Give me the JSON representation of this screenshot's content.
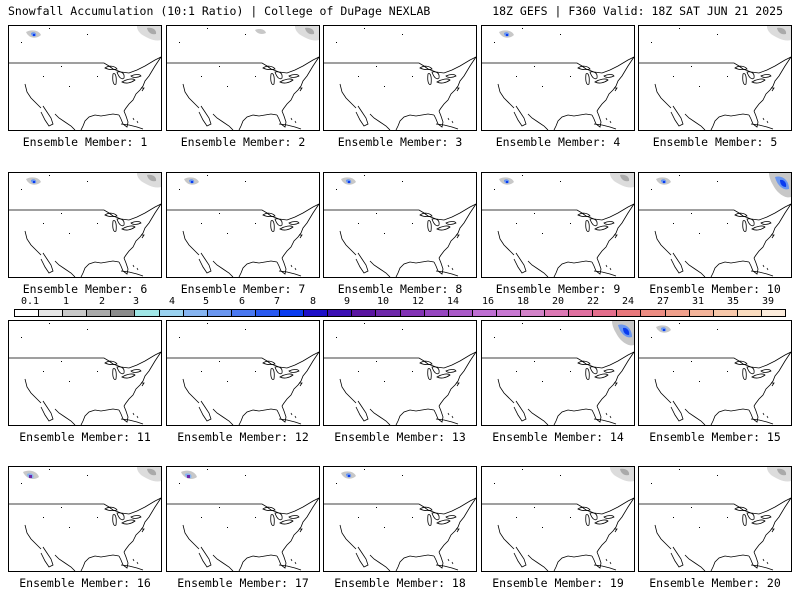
{
  "header": {
    "left": "Snowfall Accumulation (10:1 Ratio) | College of DuPage NEXLAB",
    "right": "18Z GEFS | F360 Valid: 18Z SAT JUN 21 2025"
  },
  "panel_label_prefix": "Ensemble Member: ",
  "members": [
    {
      "label": "Ensemble Member: 1",
      "snow": [
        "nw-blue",
        "ne-gray"
      ]
    },
    {
      "label": "Ensemble Member: 2",
      "snow": [
        "nw-gray-small",
        "ne-gray"
      ]
    },
    {
      "label": "Ensemble Member: 3",
      "snow": []
    },
    {
      "label": "Ensemble Member: 4",
      "snow": [
        "nw-blue"
      ]
    },
    {
      "label": "Ensemble Member: 5",
      "snow": [
        "ne-gray"
      ]
    },
    {
      "label": "Ensemble Member: 6",
      "snow": [
        "nw-blue",
        "ne-gray"
      ]
    },
    {
      "label": "Ensemble Member: 7",
      "snow": [
        "nw-blue"
      ]
    },
    {
      "label": "Ensemble Member: 8",
      "snow": [
        "nw-blue"
      ]
    },
    {
      "label": "Ensemble Member: 9",
      "snow": [
        "nw-blue",
        "ne-gray"
      ]
    },
    {
      "label": "Ensemble Member: 10",
      "snow": [
        "nw-blue",
        "ne-blue"
      ]
    },
    {
      "label": "Ensemble Member: 11",
      "snow": []
    },
    {
      "label": "Ensemble Member: 12",
      "snow": []
    },
    {
      "label": "Ensemble Member: 13",
      "snow": []
    },
    {
      "label": "Ensemble Member: 14",
      "snow": [
        "ne-blue"
      ]
    },
    {
      "label": "Ensemble Member: 15",
      "snow": [
        "nw-blue"
      ]
    },
    {
      "label": "Ensemble Member: 16",
      "snow": [
        "nw-purple",
        "ne-gray"
      ]
    },
    {
      "label": "Ensemble Member: 17",
      "snow": [
        "nw-purple"
      ]
    },
    {
      "label": "Ensemble Member: 18",
      "snow": [
        "nw-blue"
      ]
    },
    {
      "label": "Ensemble Member: 19",
      "snow": [
        "ne-gray"
      ]
    },
    {
      "label": "Ensemble Member: 20",
      "snow": [
        "ne-gray"
      ]
    }
  ],
  "colorbar": {
    "labels": [
      "0.1",
      "1",
      "2",
      "3",
      "4",
      "5",
      "6",
      "7",
      "8",
      "9",
      "10",
      "12",
      "14",
      "16",
      "18",
      "20",
      "22",
      "24",
      "27",
      "31",
      "35",
      "39"
    ],
    "colors": [
      "#ffffff",
      "#e6e6e6",
      "#c8c8c8",
      "#aaaaaa",
      "#8c8c8c",
      "#a0e6e6",
      "#9ad2f0",
      "#86b4f0",
      "#6a96f0",
      "#4a78f0",
      "#2a5af0",
      "#0a3cf0",
      "#1e10c8",
      "#3c10b4",
      "#5a14a0",
      "#6e28aa",
      "#8232b4",
      "#9646c0",
      "#aa5ac8",
      "#be6ed2",
      "#c878d2",
      "#d282c8",
      "#dc78b4",
      "#e070a0",
      "#e46e8c",
      "#e8787c",
      "#ec8c82",
      "#f0a08c",
      "#f4b49a",
      "#f8c8aa",
      "#fadcc0",
      "#fcecdc"
    ]
  }
}
